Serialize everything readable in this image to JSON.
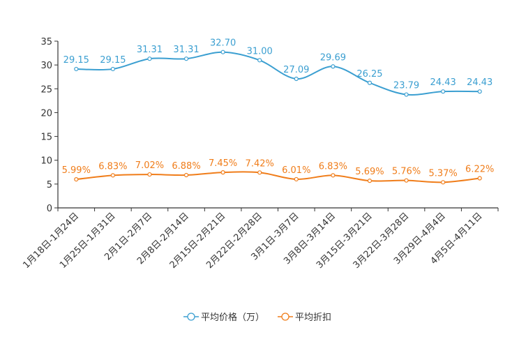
{
  "chart_data": {
    "type": "line",
    "title": "",
    "xlabel": "",
    "ylabel": "",
    "ylim": [
      0,
      35
    ],
    "yticks": [
      0,
      5,
      10,
      15,
      20,
      25,
      30,
      35
    ],
    "grid": false,
    "legend_position": "bottom",
    "categories": [
      "1月18日-1月24日",
      "1月25日-1月31日",
      "2月1日-2月7日",
      "2月8日-2月14日",
      "2月15日-2月21日",
      "2月22日-2月28日",
      "3月1日-3月7日",
      "3月8日-3月14日",
      "3月15日-3月21日",
      "3月22日-3月28日",
      "3月29日-4月4日",
      "4月5日-4月11日"
    ],
    "series": [
      {
        "name": "平均价格（万）",
        "color": "#3b9fd1",
        "values": [
          29.15,
          29.15,
          31.31,
          31.31,
          32.7,
          31.0,
          27.09,
          29.69,
          26.25,
          23.79,
          24.43,
          24.43
        ],
        "labels": [
          "29.15",
          "29.15",
          "31.31",
          "31.31",
          "32.70",
          "31.00",
          "27.09",
          "29.69",
          "26.25",
          "23.79",
          "24.43",
          "24.43"
        ]
      },
      {
        "name": "平均折扣",
        "color": "#f07d1a",
        "values": [
          5.99,
          6.83,
          7.02,
          6.88,
          7.45,
          7.42,
          6.01,
          6.83,
          5.69,
          5.76,
          5.37,
          6.22
        ],
        "labels": [
          "5.99%",
          "6.83%",
          "7.02%",
          "6.88%",
          "7.45%",
          "7.42%",
          "6.01%",
          "6.83%",
          "5.69%",
          "5.76%",
          "5.37%",
          "6.22%"
        ]
      }
    ]
  }
}
